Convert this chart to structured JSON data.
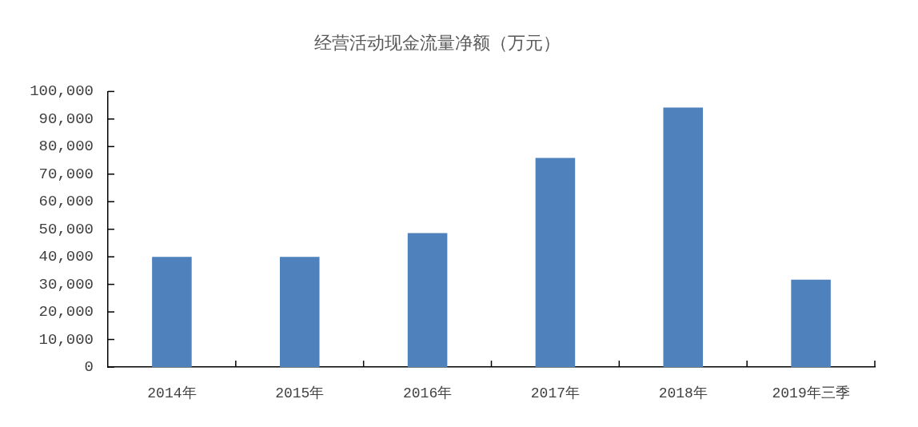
{
  "chart_data": {
    "type": "bar",
    "title": "经营活动现金流量净额（万元）",
    "categories": [
      "2014年",
      "2015年",
      "2016年",
      "2017年",
      "2018年",
      "2019年三季"
    ],
    "values": [
      40000,
      40000,
      48600,
      75900,
      94200,
      31700
    ],
    "color": "#4f81bd",
    "ylim": [
      0,
      100000
    ],
    "yticks": [
      0,
      {
        "value": 10000,
        "label": "10,000"
      },
      {
        "value": 20000,
        "label": "20,000"
      },
      {
        "value": 30000,
        "label": "30,000"
      },
      {
        "value": 40000,
        "label": "40,000"
      },
      {
        "value": 50000,
        "label": "50,000"
      },
      {
        "value": 60000,
        "label": "60,000"
      },
      {
        "value": 70000,
        "label": "70,000"
      },
      {
        "value": 80000,
        "label": "80,000"
      },
      {
        "value": 90000,
        "label": "90,000"
      },
      {
        "value": 100000,
        "label": "100,000"
      }
    ],
    "grid": false
  }
}
